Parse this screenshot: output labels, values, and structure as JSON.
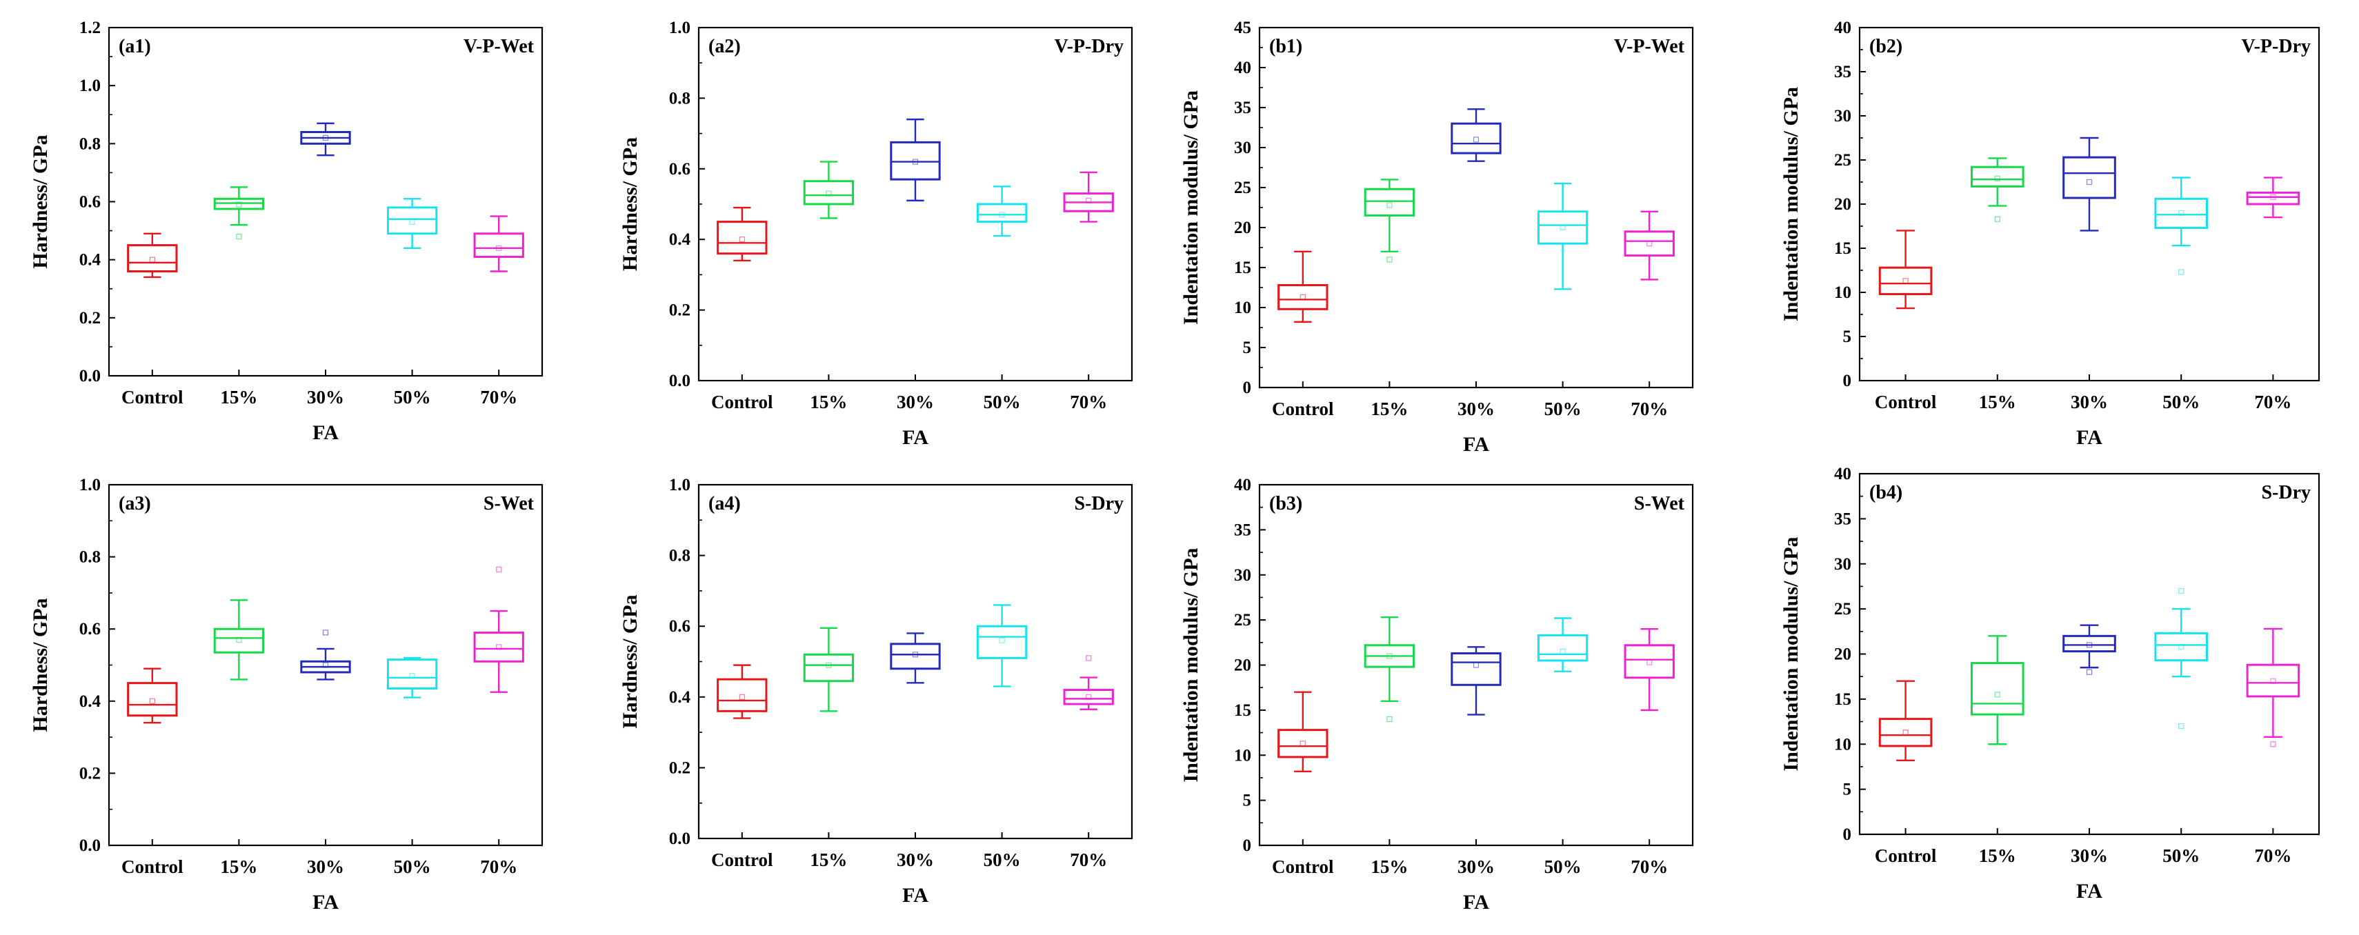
{
  "colors": [
    "#e8161a",
    "#16d94a",
    "#232ab7",
    "#17e3f0",
    "#ee21d3"
  ],
  "chart_data": [
    {
      "id": "a1",
      "type": "box",
      "panel_label": "(a1)",
      "condition": "V-P-Wet",
      "xlabel": "FA",
      "ylabel": "Hardness/ GPa",
      "ylim": [
        0,
        1.2
      ],
      "yticks": [
        0.0,
        0.2,
        0.4,
        0.6,
        0.8,
        1.0,
        1.2
      ],
      "ytick_labels": [
        "0.0",
        "0.2",
        "0.4",
        "0.6",
        "0.8",
        "1.0",
        "1.2"
      ],
      "categories": [
        "Control",
        "15%",
        "30%",
        "50%",
        "70%"
      ],
      "boxes": [
        {
          "whisker_low": 0.34,
          "q1": 0.36,
          "median": 0.39,
          "q3": 0.45,
          "whisker_high": 0.49,
          "mean": 0.4,
          "outliers": []
        },
        {
          "whisker_low": 0.52,
          "q1": 0.575,
          "median": 0.595,
          "q3": 0.61,
          "whisker_high": 0.65,
          "mean": 0.59,
          "outliers": [
            0.48
          ]
        },
        {
          "whisker_low": 0.76,
          "q1": 0.8,
          "median": 0.82,
          "q3": 0.84,
          "whisker_high": 0.87,
          "mean": 0.82,
          "outliers": []
        },
        {
          "whisker_low": 0.44,
          "q1": 0.49,
          "median": 0.54,
          "q3": 0.58,
          "whisker_high": 0.61,
          "mean": 0.53,
          "outliers": []
        },
        {
          "whisker_low": 0.36,
          "q1": 0.41,
          "median": 0.44,
          "q3": 0.49,
          "whisker_high": 0.55,
          "mean": 0.44,
          "outliers": []
        }
      ]
    },
    {
      "id": "a2",
      "type": "box",
      "panel_label": "(a2)",
      "condition": "V-P-Dry",
      "xlabel": "FA",
      "ylabel": "Hardness/ GPa",
      "ylim": [
        0,
        1.0
      ],
      "yticks": [
        0.0,
        0.2,
        0.4,
        0.6,
        0.8,
        1.0
      ],
      "ytick_labels": [
        "0.0",
        "0.2",
        "0.4",
        "0.6",
        "0.8",
        "1.0"
      ],
      "categories": [
        "Control",
        "15%",
        "30%",
        "50%",
        "70%"
      ],
      "boxes": [
        {
          "whisker_low": 0.34,
          "q1": 0.36,
          "median": 0.39,
          "q3": 0.45,
          "whisker_high": 0.49,
          "mean": 0.4,
          "outliers": []
        },
        {
          "whisker_low": 0.46,
          "q1": 0.5,
          "median": 0.525,
          "q3": 0.565,
          "whisker_high": 0.62,
          "mean": 0.53,
          "outliers": []
        },
        {
          "whisker_low": 0.51,
          "q1": 0.57,
          "median": 0.62,
          "q3": 0.675,
          "whisker_high": 0.74,
          "mean": 0.62,
          "outliers": []
        },
        {
          "whisker_low": 0.41,
          "q1": 0.45,
          "median": 0.47,
          "q3": 0.5,
          "whisker_high": 0.55,
          "mean": 0.47,
          "outliers": []
        },
        {
          "whisker_low": 0.45,
          "q1": 0.48,
          "median": 0.505,
          "q3": 0.53,
          "whisker_high": 0.59,
          "mean": 0.51,
          "outliers": []
        }
      ]
    },
    {
      "id": "b1",
      "type": "box",
      "panel_label": "(b1)",
      "condition": "V-P-Wet",
      "xlabel": "FA",
      "ylabel": "Indentation modulus/ GPa",
      "ylim": [
        0,
        45
      ],
      "yticks": [
        0,
        5,
        10,
        15,
        20,
        25,
        30,
        35,
        40,
        45
      ],
      "ytick_labels": [
        "0",
        "5",
        "10",
        "15",
        "20",
        "25",
        "30",
        "35",
        "40",
        "45"
      ],
      "categories": [
        "Control",
        "15%",
        "30%",
        "50%",
        "70%"
      ],
      "boxes": [
        {
          "whisker_low": 8.2,
          "q1": 9.8,
          "median": 11.0,
          "q3": 12.8,
          "whisker_high": 17.0,
          "mean": 11.3,
          "outliers": []
        },
        {
          "whisker_low": 17.0,
          "q1": 21.5,
          "median": 23.3,
          "q3": 24.8,
          "whisker_high": 26.0,
          "mean": 22.8,
          "outliers": [
            16.0
          ]
        },
        {
          "whisker_low": 28.3,
          "q1": 29.3,
          "median": 30.5,
          "q3": 33.0,
          "whisker_high": 34.8,
          "mean": 31.0,
          "outliers": []
        },
        {
          "whisker_low": 12.3,
          "q1": 18.0,
          "median": 20.3,
          "q3": 22.0,
          "whisker_high": 25.5,
          "mean": 20.0,
          "outliers": []
        },
        {
          "whisker_low": 13.5,
          "q1": 16.5,
          "median": 18.3,
          "q3": 19.5,
          "whisker_high": 22.0,
          "mean": 18.0,
          "outliers": []
        }
      ]
    },
    {
      "id": "b2",
      "type": "box",
      "panel_label": "(b2)",
      "condition": "V-P-Dry",
      "xlabel": "FA",
      "ylabel": "Indentation modulus/ GPa",
      "ylim": [
        0,
        40
      ],
      "yticks": [
        0,
        5,
        10,
        15,
        20,
        25,
        30,
        35,
        40
      ],
      "ytick_labels": [
        "0",
        "5",
        "10",
        "15",
        "20",
        "25",
        "30",
        "35",
        "40"
      ],
      "categories": [
        "Control",
        "15%",
        "30%",
        "50%",
        "70%"
      ],
      "boxes": [
        {
          "whisker_low": 8.2,
          "q1": 9.8,
          "median": 11.0,
          "q3": 12.8,
          "whisker_high": 17.0,
          "mean": 11.3,
          "outliers": []
        },
        {
          "whisker_low": 19.8,
          "q1": 22.0,
          "median": 22.8,
          "q3": 24.2,
          "whisker_high": 25.2,
          "mean": 22.9,
          "outliers": [
            18.3
          ]
        },
        {
          "whisker_low": 17.0,
          "q1": 20.7,
          "median": 23.5,
          "q3": 25.3,
          "whisker_high": 27.5,
          "mean": 22.5,
          "outliers": []
        },
        {
          "whisker_low": 15.3,
          "q1": 17.3,
          "median": 18.8,
          "q3": 20.6,
          "whisker_high": 23.0,
          "mean": 19.0,
          "outliers": [
            12.3
          ]
        },
        {
          "whisker_low": 18.5,
          "q1": 20.0,
          "median": 20.8,
          "q3": 21.3,
          "whisker_high": 23.0,
          "mean": 20.8,
          "outliers": []
        }
      ]
    },
    {
      "id": "a3",
      "type": "box",
      "panel_label": "(a3)",
      "condition": "S-Wet",
      "xlabel": "FA",
      "ylabel": "Hardness/ GPa",
      "ylim": [
        0,
        1.0
      ],
      "yticks": [
        0.0,
        0.2,
        0.4,
        0.6,
        0.8,
        1.0
      ],
      "ytick_labels": [
        "0.0",
        "0.2",
        "0.4",
        "0.6",
        "0.8",
        "1.0"
      ],
      "categories": [
        "Control",
        "15%",
        "30%",
        "50%",
        "70%"
      ],
      "boxes": [
        {
          "whisker_low": 0.34,
          "q1": 0.36,
          "median": 0.39,
          "q3": 0.45,
          "whisker_high": 0.49,
          "mean": 0.4,
          "outliers": []
        },
        {
          "whisker_low": 0.46,
          "q1": 0.535,
          "median": 0.575,
          "q3": 0.6,
          "whisker_high": 0.68,
          "mean": 0.57,
          "outliers": []
        },
        {
          "whisker_low": 0.46,
          "q1": 0.48,
          "median": 0.495,
          "q3": 0.51,
          "whisker_high": 0.545,
          "mean": 0.5,
          "outliers": [
            0.59
          ]
        },
        {
          "whisker_low": 0.41,
          "q1": 0.435,
          "median": 0.465,
          "q3": 0.515,
          "whisker_high": 0.52,
          "mean": 0.47,
          "outliers": []
        },
        {
          "whisker_low": 0.425,
          "q1": 0.51,
          "median": 0.545,
          "q3": 0.59,
          "whisker_high": 0.65,
          "mean": 0.55,
          "outliers": [
            0.765
          ]
        }
      ]
    },
    {
      "id": "a4",
      "type": "box",
      "panel_label": "(a4)",
      "condition": "S-Dry",
      "xlabel": "FA",
      "ylabel": "Hardness/ GPa",
      "ylim": [
        0,
        1.0
      ],
      "yticks": [
        0.0,
        0.2,
        0.4,
        0.6,
        0.8,
        1.0
      ],
      "ytick_labels": [
        "0.0",
        "0.2",
        "0.4",
        "0.6",
        "0.8",
        "1.0"
      ],
      "categories": [
        "Control",
        "15%",
        "30%",
        "50%",
        "70%"
      ],
      "boxes": [
        {
          "whisker_low": 0.34,
          "q1": 0.36,
          "median": 0.39,
          "q3": 0.45,
          "whisker_high": 0.49,
          "mean": 0.4,
          "outliers": []
        },
        {
          "whisker_low": 0.36,
          "q1": 0.445,
          "median": 0.49,
          "q3": 0.52,
          "whisker_high": 0.595,
          "mean": 0.49,
          "outliers": []
        },
        {
          "whisker_low": 0.44,
          "q1": 0.48,
          "median": 0.52,
          "q3": 0.55,
          "whisker_high": 0.58,
          "mean": 0.52,
          "outliers": []
        },
        {
          "whisker_low": 0.43,
          "q1": 0.51,
          "median": 0.57,
          "q3": 0.6,
          "whisker_high": 0.66,
          "mean": 0.56,
          "outliers": []
        },
        {
          "whisker_low": 0.365,
          "q1": 0.38,
          "median": 0.395,
          "q3": 0.42,
          "whisker_high": 0.455,
          "mean": 0.4,
          "outliers": [
            0.51
          ]
        }
      ]
    },
    {
      "id": "b3",
      "type": "box",
      "panel_label": "(b3)",
      "condition": "S-Wet",
      "xlabel": "FA",
      "ylabel": "Indentation modulus/ GPa",
      "ylim": [
        0,
        40
      ],
      "yticks": [
        0,
        5,
        10,
        15,
        20,
        25,
        30,
        35,
        40
      ],
      "ytick_labels": [
        "0",
        "5",
        "10",
        "15",
        "20",
        "25",
        "30",
        "35",
        "40"
      ],
      "categories": [
        "Control",
        "15%",
        "30%",
        "50%",
        "70%"
      ],
      "boxes": [
        {
          "whisker_low": 8.2,
          "q1": 9.8,
          "median": 11.0,
          "q3": 12.8,
          "whisker_high": 17.0,
          "mean": 11.3,
          "outliers": []
        },
        {
          "whisker_low": 16.0,
          "q1": 19.8,
          "median": 21.0,
          "q3": 22.2,
          "whisker_high": 25.3,
          "mean": 21.0,
          "outliers": [
            14.0
          ]
        },
        {
          "whisker_low": 14.5,
          "q1": 17.8,
          "median": 20.3,
          "q3": 21.3,
          "whisker_high": 22.0,
          "mean": 20.0,
          "outliers": []
        },
        {
          "whisker_low": 19.3,
          "q1": 20.5,
          "median": 21.2,
          "q3": 23.3,
          "whisker_high": 25.2,
          "mean": 21.5,
          "outliers": []
        },
        {
          "whisker_low": 15.0,
          "q1": 18.6,
          "median": 20.6,
          "q3": 22.2,
          "whisker_high": 24.0,
          "mean": 20.3,
          "outliers": []
        }
      ]
    },
    {
      "id": "b4",
      "type": "box",
      "panel_label": "(b4)",
      "condition": "S-Dry",
      "xlabel": "FA",
      "ylabel": "Indentation modulus/ GPa",
      "ylim": [
        0,
        40
      ],
      "yticks": [
        0,
        5,
        10,
        15,
        20,
        25,
        30,
        35,
        40
      ],
      "ytick_labels": [
        "0",
        "5",
        "10",
        "15",
        "20",
        "25",
        "30",
        "35",
        "40"
      ],
      "categories": [
        "Control",
        "15%",
        "30%",
        "50%",
        "70%"
      ],
      "boxes": [
        {
          "whisker_low": 8.2,
          "q1": 9.8,
          "median": 11.0,
          "q3": 12.8,
          "whisker_high": 17.0,
          "mean": 11.3,
          "outliers": []
        },
        {
          "whisker_low": 10.0,
          "q1": 13.3,
          "median": 14.5,
          "q3": 19.0,
          "whisker_high": 22.0,
          "mean": 15.5,
          "outliers": []
        },
        {
          "whisker_low": 18.5,
          "q1": 20.3,
          "median": 21.0,
          "q3": 22.0,
          "whisker_high": 23.2,
          "mean": 21.0,
          "outliers": [
            18.0
          ]
        },
        {
          "whisker_low": 17.5,
          "q1": 19.3,
          "median": 21.0,
          "q3": 22.3,
          "whisker_high": 25.0,
          "mean": 20.8,
          "outliers": [
            27.0,
            12.0
          ]
        },
        {
          "whisker_low": 10.8,
          "q1": 15.3,
          "median": 16.8,
          "q3": 18.8,
          "whisker_high": 22.8,
          "mean": 17.0,
          "outliers": [
            10.0
          ]
        }
      ]
    }
  ]
}
